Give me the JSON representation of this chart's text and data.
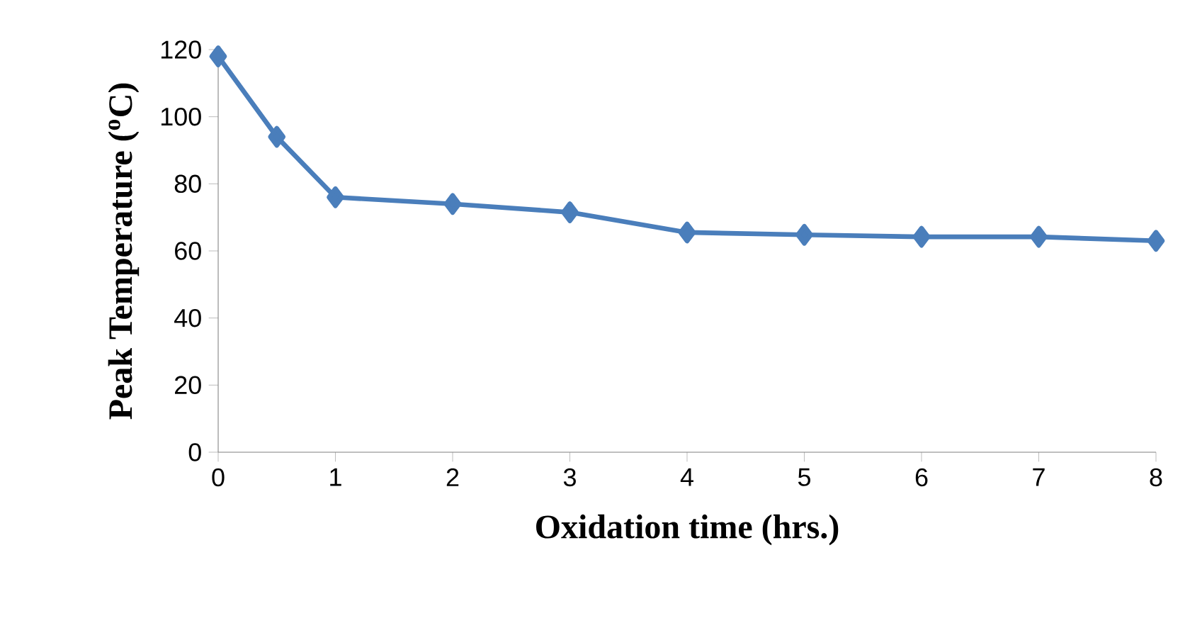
{
  "chart_data": {
    "type": "line",
    "xlabel": "Oxidation time (hrs.)",
    "ylabel": "Peak Temperature ($^{o}$C)",
    "x": [
      0,
      0.5,
      1,
      2,
      3,
      4,
      5,
      6,
      7,
      8
    ],
    "series": [
      {
        "color": "#4a7ebb",
        "values": [
          118,
          94,
          76,
          74,
          71.5,
          65.5,
          64.8,
          64.2,
          64.2,
          63
        ]
      }
    ],
    "xlim": [
      0,
      8
    ],
    "ylim": [
      0,
      120
    ],
    "xticks": [
      0,
      1,
      2,
      3,
      4,
      5,
      6,
      7,
      8
    ],
    "yticks": [
      0,
      20,
      40,
      60,
      80,
      100,
      120
    ],
    "marker": "diamond",
    "line_style": "solid",
    "grid": false
  }
}
